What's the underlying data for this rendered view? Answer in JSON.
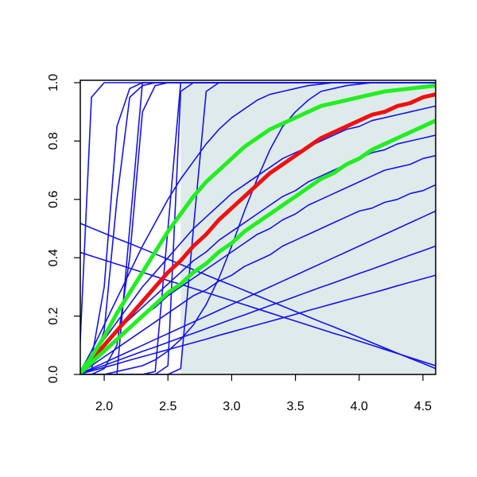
{
  "chart_data": {
    "type": "line",
    "x": [
      1.8,
      1.9,
      2.0,
      2.1,
      2.2,
      2.3,
      2.4,
      2.5,
      2.6,
      2.7,
      2.8,
      2.9,
      3.0,
      3.1,
      3.2,
      3.3,
      3.4,
      3.5,
      3.6,
      3.7,
      3.8,
      3.9,
      4.0,
      4.1,
      4.2,
      4.3,
      4.4,
      4.5,
      4.6
    ],
    "xlim": [
      1.8,
      4.6
    ],
    "ylim": [
      0,
      1
    ],
    "xticks": [
      {
        "value": 2,
        "label": "2.0"
      },
      2.5,
      {
        "value": 3,
        "label": "3.0"
      },
      3.5,
      {
        "value": 4,
        "label": "4.0"
      },
      4.5
    ],
    "yticks": [
      {
        "value": 0,
        "label": "0.0"
      },
      0.2,
      0.4,
      0.6,
      0.8,
      {
        "value": 1,
        "label": "1.0"
      }
    ],
    "color": "#1414e6",
    "shaded_region": {
      "xlim": [
        2.6,
        4.6
      ],
      "color": "#dfeaea"
    },
    "series": [
      {
        "values": [
          0,
          0.95,
          1,
          1,
          1,
          1,
          1,
          1,
          1,
          1,
          1,
          1,
          1,
          1,
          1,
          1,
          1,
          1,
          1,
          1,
          1,
          1,
          1,
          1,
          1,
          1,
          1,
          1,
          1
        ]
      },
      {
        "values": [
          0,
          0.05,
          0.3,
          0.85,
          0.98,
          1,
          1,
          1,
          1,
          1,
          1,
          1,
          1,
          1,
          1,
          1,
          1,
          1,
          1,
          1,
          1,
          1,
          1,
          1,
          1,
          1,
          1,
          1,
          1
        ]
      },
      {
        "values": [
          0,
          0.02,
          0.15,
          0.6,
          0.95,
          0.99,
          1,
          1,
          1,
          1,
          1,
          1,
          1,
          1,
          1,
          1,
          1,
          1,
          1,
          1,
          1,
          1,
          1,
          1,
          1,
          1,
          1,
          1,
          1
        ]
      },
      {
        "values": [
          0,
          0,
          0.02,
          0.1,
          0.4,
          0.9,
          0.99,
          1,
          1,
          1,
          1,
          1,
          1,
          1,
          1,
          1,
          1,
          1,
          1,
          1,
          1,
          1,
          1,
          1,
          1,
          1,
          1,
          1,
          1
        ]
      },
      {
        "values": [
          0,
          0,
          0,
          0,
          0,
          0,
          0.01,
          0.5,
          1,
          1,
          1,
          1,
          1,
          1,
          1,
          1,
          1,
          1,
          1,
          1,
          1,
          1,
          1,
          1,
          1,
          1,
          1,
          1,
          1
        ]
      },
      {
        "values": [
          0,
          0,
          0,
          0,
          0,
          0,
          0,
          0,
          0.02,
          0.5,
          0.97,
          1,
          1,
          1,
          1,
          1,
          1,
          1,
          1,
          1,
          1,
          1,
          1,
          1,
          1,
          1,
          1,
          1,
          1
        ]
      },
      {
        "values": [
          0,
          0,
          0,
          0,
          0.5,
          1,
          1,
          1,
          1,
          1,
          1,
          1,
          1,
          1,
          1,
          1,
          1,
          1,
          1,
          1,
          1,
          1,
          1,
          1,
          1,
          1,
          1,
          1,
          1
        ]
      },
      {
        "values": [
          0,
          0,
          0,
          0,
          0,
          0,
          0,
          0.03,
          0.97,
          1,
          1,
          1,
          1,
          1,
          1,
          1,
          1,
          1,
          1,
          1,
          1,
          1,
          1,
          1,
          1,
          1,
          1,
          1,
          1
        ]
      },
      {
        "values": [
          0,
          0.02,
          0.04,
          0.06,
          0.08,
          0.1,
          0.12,
          0.14,
          0.16,
          0.18,
          0.2,
          0.22,
          0.24,
          0.26,
          0.28,
          0.3,
          0.32,
          0.34,
          0.36,
          0.38,
          0.4,
          0.42,
          0.44,
          0.46,
          0.48,
          0.5,
          0.52,
          0.54,
          0.56
        ]
      },
      {
        "values": [
          0,
          0.016,
          0.031,
          0.047,
          0.063,
          0.079,
          0.094,
          0.11,
          0.126,
          0.141,
          0.157,
          0.173,
          0.189,
          0.204,
          0.22,
          0.236,
          0.251,
          0.267,
          0.283,
          0.299,
          0.314,
          0.33,
          0.346,
          0.361,
          0.377,
          0.393,
          0.409,
          0.424,
          0.44
        ]
      },
      {
        "values": [
          0,
          0.012,
          0.024,
          0.036,
          0.049,
          0.061,
          0.073,
          0.085,
          0.097,
          0.109,
          0.121,
          0.134,
          0.146,
          0.158,
          0.17,
          0.182,
          0.194,
          0.206,
          0.219,
          0.231,
          0.243,
          0.255,
          0.267,
          0.279,
          0.291,
          0.304,
          0.316,
          0.328,
          0.34
        ]
      },
      {
        "values": [
          0.52,
          0.502,
          0.484,
          0.466,
          0.449,
          0.431,
          0.413,
          0.395,
          0.377,
          0.359,
          0.341,
          0.323,
          0.306,
          0.288,
          0.27,
          0.252,
          0.234,
          0.216,
          0.198,
          0.18,
          0.163,
          0.145,
          0.127,
          0.109,
          0.091,
          0.073,
          0.055,
          0.038,
          0.02
        ]
      },
      {
        "values": [
          0.42,
          0.406,
          0.392,
          0.378,
          0.364,
          0.35,
          0.336,
          0.322,
          0.309,
          0.295,
          0.281,
          0.267,
          0.253,
          0.239,
          0.225,
          0.211,
          0.197,
          0.183,
          0.169,
          0.155,
          0.141,
          0.128,
          0.114,
          0.1,
          0.086,
          0.072,
          0.058,
          0.044,
          0.03
        ]
      },
      {
        "values": [
          0,
          0.04,
          0.08,
          0.12,
          0.16,
          0.2,
          0.23,
          0.27,
          0.3,
          0.33,
          0.36,
          0.39,
          0.42,
          0.45,
          0.48,
          0.5,
          0.53,
          0.55,
          0.58,
          0.6,
          0.62,
          0.64,
          0.66,
          0.68,
          0.7,
          0.71,
          0.72,
          0.74,
          0.75
        ]
      },
      {
        "values": [
          0,
          0.03,
          0.06,
          0.09,
          0.12,
          0.15,
          0.18,
          0.21,
          0.24,
          0.27,
          0.29,
          0.32,
          0.34,
          0.37,
          0.39,
          0.41,
          0.44,
          0.46,
          0.48,
          0.5,
          0.52,
          0.54,
          0.56,
          0.57,
          0.59,
          0.6,
          0.62,
          0.63,
          0.65
        ]
      },
      {
        "values": [
          0,
          0.08,
          0.17,
          0.26,
          0.35,
          0.44,
          0.52,
          0.6,
          0.67,
          0.73,
          0.79,
          0.84,
          0.88,
          0.91,
          0.94,
          0.96,
          0.97,
          0.98,
          0.99,
          0.995,
          1,
          1,
          1,
          1,
          1,
          1,
          1,
          1,
          1
        ]
      },
      {
        "values": [
          0,
          0,
          0,
          0.01,
          0.02,
          0.03,
          0.05,
          0.08,
          0.12,
          0.17,
          0.24,
          0.33,
          0.44,
          0.56,
          0.67,
          0.77,
          0.85,
          0.9,
          0.94,
          0.97,
          0.98,
          0.99,
          0.995,
          1,
          1,
          1,
          1,
          1,
          1
        ]
      },
      {
        "values": [
          0,
          0.06,
          0.12,
          0.18,
          0.24,
          0.3,
          0.35,
          0.4,
          0.45,
          0.5,
          0.54,
          0.58,
          0.62,
          0.65,
          0.68,
          0.71,
          0.74,
          0.76,
          0.78,
          0.8,
          0.82,
          0.84,
          0.85,
          0.87,
          0.88,
          0.89,
          0.9,
          0.91,
          0.92
        ]
      },
      {
        "values": [
          0,
          0.05,
          0.1,
          0.15,
          0.19,
          0.23,
          0.27,
          0.31,
          0.35,
          0.39,
          0.42,
          0.46,
          0.49,
          0.52,
          0.55,
          0.58,
          0.61,
          0.63,
          0.66,
          0.68,
          0.7,
          0.72,
          0.74,
          0.76,
          0.77,
          0.79,
          0.8,
          0.81,
          0.82
        ]
      },
      {
        "color": "#ee1111",
        "values": [
          0,
          0.05,
          0.1,
          0.15,
          0.2,
          0.25,
          0.3,
          0.35,
          0.39,
          0.44,
          0.48,
          0.53,
          0.57,
          0.61,
          0.65,
          0.69,
          0.72,
          0.75,
          0.78,
          0.81,
          0.83,
          0.85,
          0.87,
          0.89,
          0.9,
          0.92,
          0.93,
          0.95,
          0.96
        ]
      },
      {
        "color": "#22ee22",
        "values": [
          0,
          0.06,
          0.13,
          0.21,
          0.28,
          0.35,
          0.42,
          0.49,
          0.55,
          0.61,
          0.66,
          0.7,
          0.74,
          0.78,
          0.81,
          0.84,
          0.86,
          0.88,
          0.9,
          0.92,
          0.93,
          0.94,
          0.95,
          0.96,
          0.97,
          0.975,
          0.98,
          0.985,
          0.99
        ]
      },
      {
        "color": "#22ee22",
        "values": [
          0,
          0.04,
          0.08,
          0.12,
          0.16,
          0.2,
          0.24,
          0.28,
          0.31,
          0.35,
          0.38,
          0.42,
          0.45,
          0.49,
          0.52,
          0.55,
          0.58,
          0.61,
          0.64,
          0.67,
          0.69,
          0.72,
          0.74,
          0.77,
          0.79,
          0.81,
          0.83,
          0.85,
          0.87
        ]
      }
    ]
  }
}
